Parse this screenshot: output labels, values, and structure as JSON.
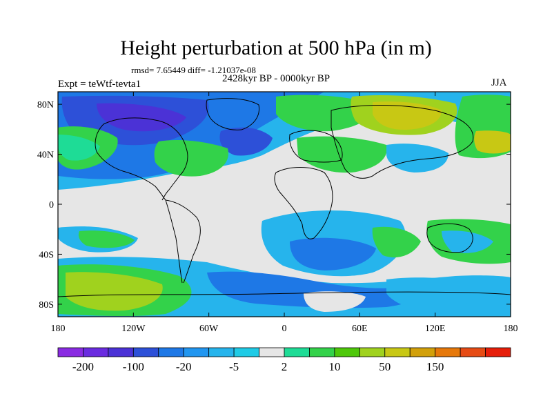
{
  "title": "Height perturbation at 500 hPa (in m)",
  "stats_text": "rmsd= 7.65449 diff= -1.21037e-08",
  "period": "2428kyr BP - 0000kyr BP",
  "experiment": "Expt = teWtf-tevta1",
  "season": "JJA",
  "axes": {
    "lon_ticks": [
      {
        "value": -180,
        "label": "180"
      },
      {
        "value": -120,
        "label": "120W"
      },
      {
        "value": -60,
        "label": "60W"
      },
      {
        "value": 0,
        "label": "0"
      },
      {
        "value": 60,
        "label": "60E"
      },
      {
        "value": 120,
        "label": "120E"
      },
      {
        "value": 180,
        "label": "180"
      }
    ],
    "lat_ticks": [
      {
        "value": 80,
        "label": "80N"
      },
      {
        "value": 40,
        "label": "40N"
      },
      {
        "value": 0,
        "label": "0"
      },
      {
        "value": -40,
        "label": "40S"
      },
      {
        "value": -80,
        "label": "80S"
      }
    ],
    "lon_range": [
      -180,
      180
    ],
    "lat_range": [
      -90,
      90
    ]
  },
  "colorbar": {
    "colors": [
      "#8a2be2",
      "#6a2be0",
      "#4b32d6",
      "#2d50d8",
      "#1e78e6",
      "#2196f0",
      "#26b4ec",
      "#1fcbe6",
      "#e6e6e6",
      "#1edc96",
      "#33d24a",
      "#4ec80a",
      "#a0d21e",
      "#c8c814",
      "#d2a00a",
      "#e6780a",
      "#e64b14",
      "#e61e0a"
    ],
    "labels": [
      {
        "boundary": 1,
        "text": "-200"
      },
      {
        "boundary": 3,
        "text": "-100"
      },
      {
        "boundary": 5,
        "text": "-20"
      },
      {
        "boundary": 7,
        "text": "-5"
      },
      {
        "boundary": 9,
        "text": "2"
      },
      {
        "boundary": 11,
        "text": "10"
      },
      {
        "boundary": 13,
        "text": "50"
      },
      {
        "boundary": 15,
        "text": "150"
      }
    ]
  },
  "colors": {
    "neutral": "#e6e6e6",
    "light_blue": "#26b4ec",
    "blue": "#1e78e6",
    "dark_blue": "#2d50d8",
    "navy": "#4b32d6",
    "green_cyan": "#1edc96",
    "green": "#33d24a",
    "yellow_green": "#a0d21e",
    "olive": "#c8c814"
  }
}
